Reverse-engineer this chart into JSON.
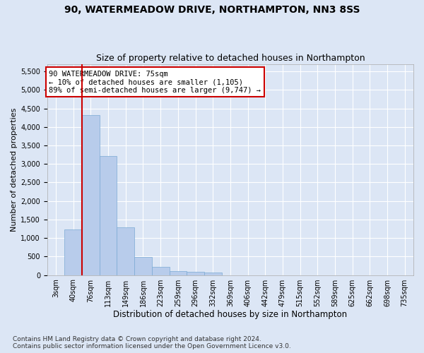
{
  "title1": "90, WATERMEADOW DRIVE, NORTHAMPTON, NN3 8SS",
  "title2": "Size of property relative to detached houses in Northampton",
  "xlabel": "Distribution of detached houses by size in Northampton",
  "ylabel": "Number of detached properties",
  "categories": [
    "3sqm",
    "40sqm",
    "76sqm",
    "113sqm",
    "149sqm",
    "186sqm",
    "223sqm",
    "259sqm",
    "296sqm",
    "332sqm",
    "369sqm",
    "406sqm",
    "442sqm",
    "479sqm",
    "515sqm",
    "552sqm",
    "589sqm",
    "625sqm",
    "662sqm",
    "698sqm",
    "735sqm"
  ],
  "values": [
    0,
    1230,
    4320,
    3220,
    1280,
    480,
    220,
    100,
    80,
    60,
    0,
    0,
    0,
    0,
    0,
    0,
    0,
    0,
    0,
    0,
    0
  ],
  "bar_color": "#b8cceb",
  "bar_edge_color": "#7aaad4",
  "property_line_color": "#cc0000",
  "property_line_x": 1.5,
  "annotation_line1": "90 WATERMEADOW DRIVE: 75sqm",
  "annotation_line2": "← 10% of detached houses are smaller (1,105)",
  "annotation_line3": "89% of semi-detached houses are larger (9,747) →",
  "annotation_box_facecolor": "#ffffff",
  "annotation_box_edgecolor": "#cc0000",
  "ylim_max": 5700,
  "yticks": [
    0,
    500,
    1000,
    1500,
    2000,
    2500,
    3000,
    3500,
    4000,
    4500,
    5000,
    5500
  ],
  "footnote": "Contains HM Land Registry data © Crown copyright and database right 2024.\nContains public sector information licensed under the Open Government Licence v3.0.",
  "background_color": "#dce6f5",
  "grid_color": "#ffffff",
  "title1_fontsize": 10,
  "title2_fontsize": 9,
  "xlabel_fontsize": 8.5,
  "ylabel_fontsize": 8,
  "tick_fontsize": 7,
  "annot_fontsize": 7.5,
  "footnote_fontsize": 6.5
}
